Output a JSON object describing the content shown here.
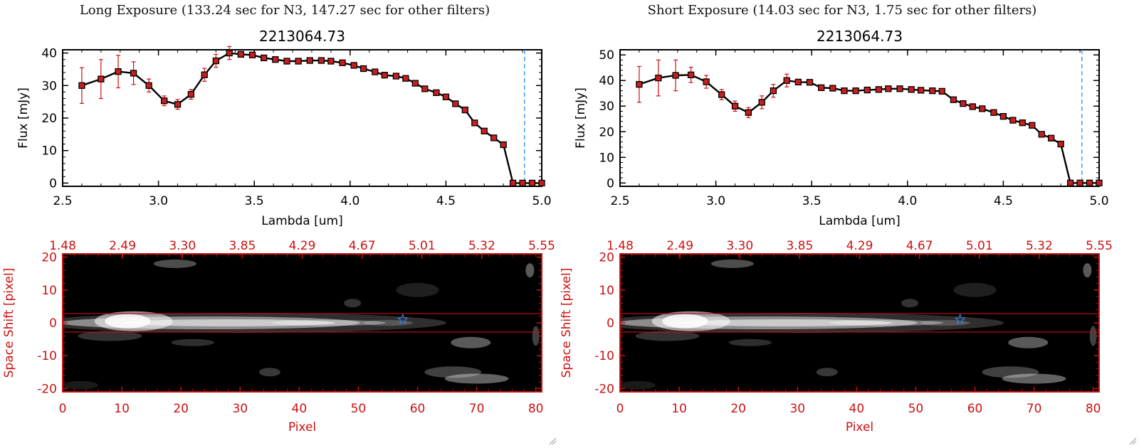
{
  "colors": {
    "red": "#cc1111",
    "black": "#000000",
    "marker": "#c81e1e",
    "blue_dashed": "#1e90ff",
    "star": "#3a7bd5"
  },
  "chart_data": [
    {
      "type": "line",
      "panel": "long",
      "title": "Long Exposure (133.24 sec for N3, 147.27 sec for other filters)",
      "subtitle": "2213064.73",
      "xlabel": "Lambda [um]",
      "ylabel": "Flux [mJy]",
      "xlim": [
        2.5,
        5.0
      ],
      "ylim": [
        -1,
        41
      ],
      "xticks": [
        "2.5",
        "3.0",
        "3.5",
        "4.0",
        "4.5",
        "5.0"
      ],
      "yticks": [
        "0",
        "10",
        "20",
        "30",
        "40"
      ],
      "vline_x": 4.91,
      "x": [
        2.6,
        2.7,
        2.79,
        2.87,
        2.95,
        3.03,
        3.1,
        3.17,
        3.24,
        3.3,
        3.37,
        3.43,
        3.49,
        3.55,
        3.61,
        3.67,
        3.73,
        3.79,
        3.85,
        3.9,
        3.96,
        4.02,
        4.07,
        4.13,
        4.18,
        4.24,
        4.29,
        4.34,
        4.39,
        4.45,
        4.5,
        4.55,
        4.6,
        4.65,
        4.7,
        4.75,
        4.8,
        4.85,
        4.9,
        4.95,
        5.0
      ],
      "y": [
        30.0,
        32.0,
        34.3,
        33.8,
        30.0,
        25.3,
        24.2,
        27.3,
        33.3,
        37.6,
        40.0,
        39.6,
        39.4,
        38.5,
        38.0,
        37.5,
        37.5,
        37.7,
        37.7,
        37.5,
        37.0,
        36.2,
        35.2,
        34.2,
        33.2,
        32.9,
        32.2,
        30.7,
        29.0,
        27.8,
        26.5,
        24.4,
        22.5,
        18.5,
        16.0,
        13.9,
        11.8,
        0,
        0,
        0,
        0
      ],
      "err": [
        5.5,
        6.0,
        5.0,
        3.5,
        2.0,
        1.5,
        1.5,
        1.5,
        2.0,
        2.0,
        2.0,
        0,
        0,
        0,
        0,
        0,
        0,
        0,
        0,
        0,
        0,
        0,
        0,
        0,
        0,
        0,
        0,
        0,
        0,
        0,
        0,
        0,
        0,
        0,
        0,
        0,
        0,
        0,
        0,
        0,
        0
      ]
    },
    {
      "type": "line",
      "panel": "short",
      "title": "Short Exposure (14.03 sec for N3, 1.75 sec for other filters)",
      "subtitle": "2213064.73",
      "xlabel": "Lambda [um]",
      "ylabel": "Flux [mJy]",
      "xlim": [
        2.5,
        5.0
      ],
      "ylim": [
        -1.3,
        52
      ],
      "xticks": [
        "2.5",
        "3.0",
        "3.5",
        "4.0",
        "4.5",
        "5.0"
      ],
      "yticks": [
        "0",
        "10",
        "20",
        "30",
        "40",
        "50"
      ],
      "vline_x": 4.91,
      "x": [
        2.6,
        2.7,
        2.79,
        2.87,
        2.95,
        3.03,
        3.1,
        3.17,
        3.24,
        3.3,
        3.37,
        3.43,
        3.49,
        3.55,
        3.61,
        3.67,
        3.73,
        3.79,
        3.85,
        3.9,
        3.96,
        4.02,
        4.07,
        4.13,
        4.18,
        4.24,
        4.29,
        4.34,
        4.39,
        4.45,
        4.5,
        4.55,
        4.6,
        4.65,
        4.7,
        4.75,
        4.8,
        4.85,
        4.9,
        4.95,
        5.0
      ],
      "y": [
        38.5,
        41.0,
        42.0,
        42.2,
        39.5,
        34.5,
        30.0,
        27.5,
        31.5,
        36.0,
        40.0,
        39.4,
        39.3,
        37.2,
        37.0,
        36.0,
        36.0,
        36.3,
        36.5,
        36.8,
        36.8,
        36.5,
        36.2,
        36.0,
        35.8,
        32.5,
        31.0,
        29.8,
        29.0,
        27.5,
        26.0,
        24.5,
        23.5,
        22.5,
        19.0,
        17.5,
        15.2,
        0,
        0,
        0,
        0
      ],
      "err": [
        7.0,
        7.0,
        6.0,
        3.0,
        2.5,
        2.0,
        2.0,
        2.0,
        2.5,
        2.5,
        2.5,
        0,
        0,
        0,
        0,
        0,
        0,
        0,
        0,
        0,
        0,
        0,
        0,
        0,
        0,
        0,
        0,
        0,
        0,
        0,
        0,
        0,
        0,
        0,
        0,
        0,
        0,
        0,
        0,
        0,
        0
      ]
    },
    {
      "type": "heatmap",
      "panel": "long",
      "xlabel": "Pixel",
      "ylabel": "Space Shift [pixel]",
      "xlim": [
        0,
        81
      ],
      "ylim": [
        -21,
        21
      ],
      "xticks": [
        "0",
        "10",
        "20",
        "30",
        "40",
        "50",
        "60",
        "70",
        "80"
      ],
      "yticks": [
        "-20",
        "-10",
        "0",
        "10",
        "20"
      ],
      "top_ticks": [
        "1.48",
        "2.49",
        "3.30",
        "3.85",
        "4.29",
        "4.67",
        "5.01",
        "5.32",
        "5.55"
      ],
      "hlines": [
        2.8,
        -2.8
      ],
      "star": [
        57.5,
        1.0
      ]
    },
    {
      "type": "heatmap",
      "panel": "short",
      "xlabel": "Pixel",
      "ylabel": "Space Shift [pixel]",
      "xlim": [
        0,
        81
      ],
      "ylim": [
        -21,
        21
      ],
      "xticks": [
        "0",
        "10",
        "20",
        "30",
        "40",
        "50",
        "60",
        "70",
        "80"
      ],
      "yticks": [
        "-20",
        "-10",
        "0",
        "10",
        "20"
      ],
      "top_ticks": [
        "1.48",
        "2.49",
        "3.30",
        "3.85",
        "4.29",
        "4.67",
        "5.01",
        "5.32",
        "5.55"
      ],
      "hlines": [
        2.8,
        -2.8
      ],
      "star": [
        57.5,
        1.0
      ]
    }
  ]
}
